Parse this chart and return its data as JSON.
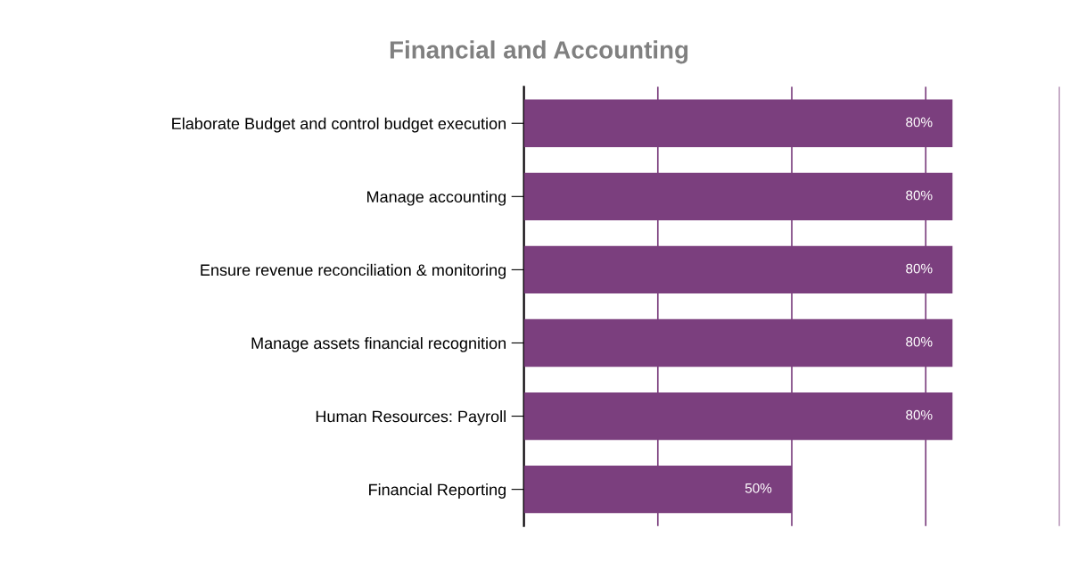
{
  "chart_data": {
    "type": "bar",
    "orientation": "horizontal",
    "title": "Financial and Accounting",
    "categories": [
      "Elaborate Budget and control budget execution",
      "Manage accounting",
      "Ensure revenue reconciliation & monitoring",
      "Manage assets financial recognition",
      "Human Resources: Payroll",
      "Financial Reporting"
    ],
    "values": [
      80,
      80,
      80,
      80,
      80,
      50
    ],
    "value_labels": [
      "80%",
      "80%",
      "80%",
      "80%",
      "80%",
      "50%"
    ],
    "color": "#7b3f7e",
    "xlim": [
      0,
      100
    ],
    "xticks": [
      {
        "value": 0,
        "label": null
      },
      {
        "value": 25,
        "label": null
      },
      {
        "value": 50,
        "label": null
      },
      {
        "value": 75,
        "label": null
      },
      {
        "value": 100,
        "label": null
      }
    ],
    "grid": "x",
    "tick_labels": "y"
  }
}
